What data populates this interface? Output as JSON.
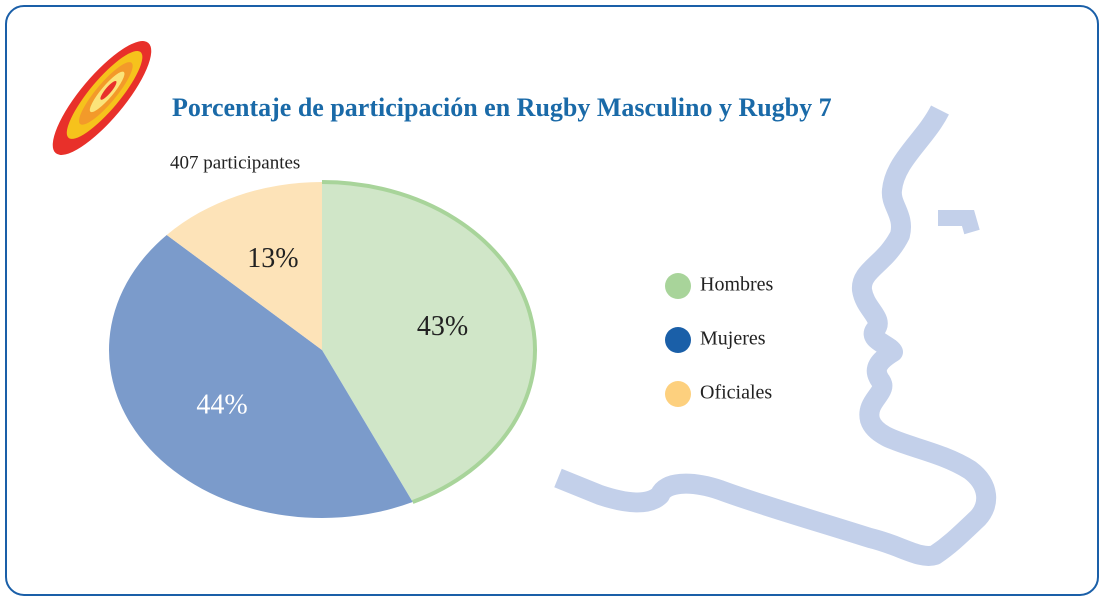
{
  "chart_data": {
    "type": "pie",
    "title": "Porcentaje de participación en Rugby Masculino y Rugby 7",
    "subtitle": "407  participantes",
    "categories": [
      "Hombres",
      "Mujeres",
      "Oficiales"
    ],
    "values": [
      43,
      44,
      13
    ],
    "value_labels": [
      "43%",
      "44%",
      "13%"
    ],
    "colors": [
      "#d0e6c8",
      "#7b9bcb",
      "#fde3b8"
    ],
    "legend_colors": [
      "#a8d49a",
      "#1a5fa8",
      "#fdd07e"
    ],
    "label_colors": [
      "#222222",
      "#ffffff",
      "#222222"
    ]
  }
}
